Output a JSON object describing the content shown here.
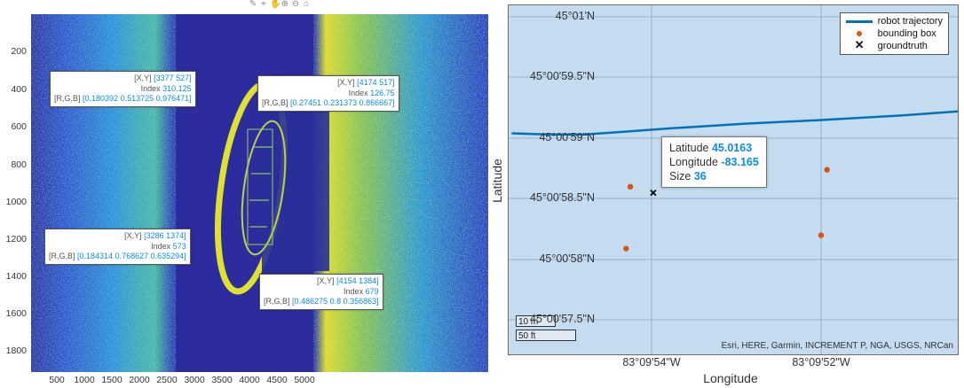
{
  "left_figure": {
    "toolbar_icons": [
      "brush-icon",
      "datatip-icon",
      "pan-icon",
      "zoom-in-icon",
      "zoom-out-icon",
      "home-icon"
    ],
    "y_ticks": [
      "200",
      "400",
      "600",
      "800",
      "1000",
      "1200",
      "1400",
      "1600",
      "1800"
    ],
    "x_ticks": [
      "500",
      "1000",
      "1500",
      "2000",
      "2500",
      "3000",
      "3500",
      "4000",
      "4500",
      "5000"
    ],
    "datatips": [
      {
        "xy_label": "[X,Y]",
        "xy_value": "[3377 527]",
        "index_label": "Index",
        "index_value": "310.125",
        "rgb_label": "[R,G,B]",
        "rgb_value": "[0.180392 0.513725 0.976471]"
      },
      {
        "xy_label": "[X,Y]",
        "xy_value": "[4174 517]",
        "index_label": "Index",
        "index_value": "126.75",
        "rgb_label": "[R,G,B]",
        "rgb_value": "[0.27451 0.231373 0.866667]"
      },
      {
        "xy_label": "[X,Y]",
        "xy_value": "[3286 1374]",
        "index_label": "Index",
        "index_value": "573",
        "rgb_label": "[R,G,B]",
        "rgb_value": "[0.184314 0.768627 0.635294]"
      },
      {
        "xy_label": "[X,Y]",
        "xy_value": "[4154 1384]",
        "index_label": "Index",
        "index_value": "679",
        "rgb_label": "[R,G,B]",
        "rgb_value": "[0.486275 0.8 0.356863]"
      }
    ]
  },
  "right_figure": {
    "y_label": "Latitude",
    "x_label": "Longitude",
    "lat_ticks": [
      "45°01'N",
      "45°00'59.5\"N",
      "45°00'59\"N",
      "45°00'58.5\"N",
      "45°00'58\"N",
      "45°00'57.5\"N"
    ],
    "lon_ticks": [
      "83°09'54\"W",
      "83°09'52\"W"
    ],
    "legend": [
      "robot trajectory",
      "bounding box",
      "groundtruth"
    ],
    "datatip": {
      "lat_label": "Latitude",
      "lat_value": "45.0163",
      "lon_label": "Longitude",
      "lon_value": "-83.165",
      "size_label": "Size",
      "size_value": "36"
    },
    "scalebar": {
      "metric": "10 m",
      "imperial": "50 ft"
    },
    "attribution": "Esri, HERE, Garmin, INCREMENT P, NGA, USGS, NRCan",
    "colors": {
      "trajectory": "#0072bd",
      "bounding_box": "#d95319",
      "groundtruth": "#000000",
      "map_background": "#c4dbf0"
    },
    "trajectory_points": [
      {
        "lon_sec": 55.65,
        "lat_sec": 59.04
      },
      {
        "lon_sec": 55.2,
        "lat_sec": 59.03
      },
      {
        "lon_sec": 54.8,
        "lat_sec": 59.03
      },
      {
        "lon_sec": 54.4,
        "lat_sec": 59.05
      },
      {
        "lon_sec": 53.8,
        "lat_sec": 59.08
      },
      {
        "lon_sec": 52.9,
        "lat_sec": 59.12
      },
      {
        "lon_sec": 52.0,
        "lat_sec": 59.15
      },
      {
        "lon_sec": 51.0,
        "lat_sec": 59.19
      },
      {
        "lon_sec": 50.2,
        "lat_sec": 59.23
      }
    ],
    "bounding_boxes": [
      {
        "lon_sec": 54.25,
        "lat_sec": 58.6
      },
      {
        "lon_sec": 54.3,
        "lat_sec": 58.09
      },
      {
        "lon_sec": 51.93,
        "lat_sec": 58.74
      },
      {
        "lon_sec": 52.0,
        "lat_sec": 58.2
      }
    ],
    "groundtruth": [
      {
        "lon_sec": 53.98,
        "lat_sec": 58.55
      }
    ]
  }
}
